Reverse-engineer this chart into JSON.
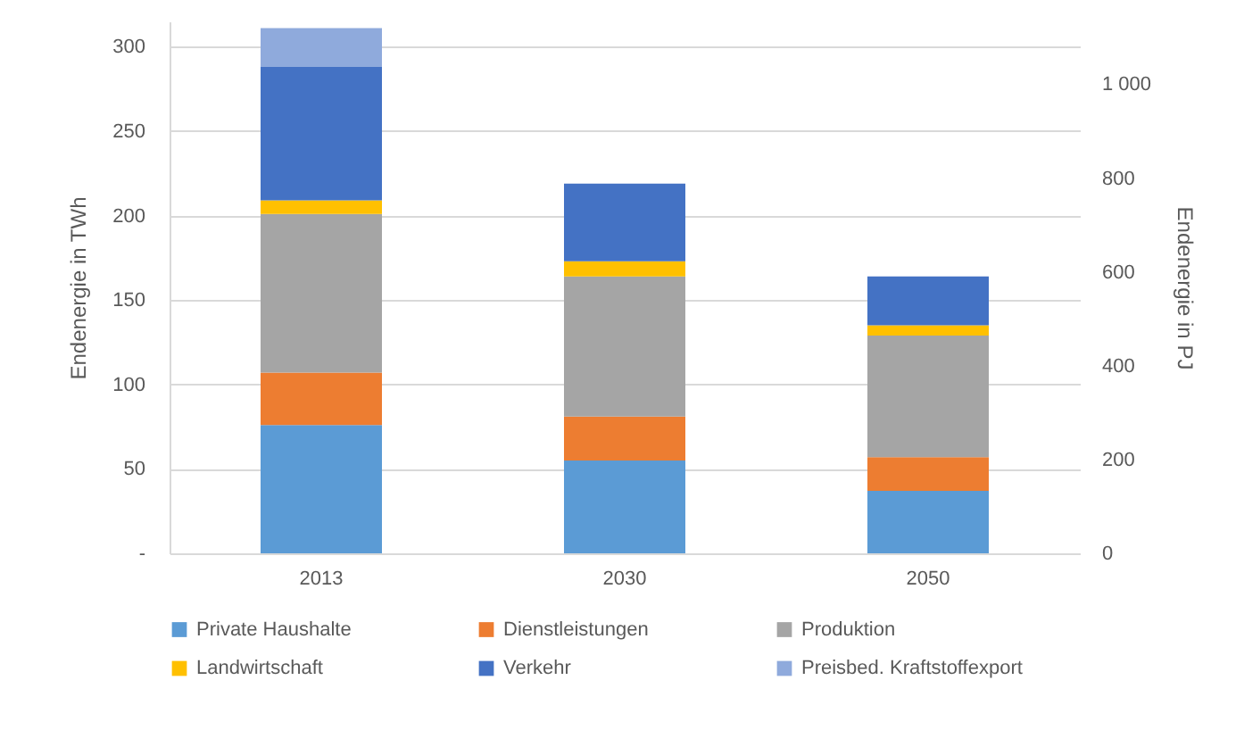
{
  "chart_data": {
    "type": "bar",
    "stacked": true,
    "ylabel": "Endenergie in TWh",
    "y2label": "Endenergie in PJ",
    "categories": [
      "2013",
      "2030",
      "2050"
    ],
    "series": [
      {
        "name": "Private Haushalte",
        "color": "#5b9bd5",
        "values": [
          76,
          55,
          37
        ]
      },
      {
        "name": "Dienstleistungen",
        "color": "#ed7d31",
        "values": [
          31,
          26,
          20
        ]
      },
      {
        "name": "Produktion",
        "color": "#a5a5a5",
        "values": [
          94,
          83,
          72
        ]
      },
      {
        "name": "Landwirtschaft",
        "color": "#ffc000",
        "values": [
          8,
          9,
          6
        ]
      },
      {
        "name": "Verkehr",
        "color": "#4472c4",
        "values": [
          79,
          46,
          29
        ]
      },
      {
        "name": "Preisbed. Kraftstoffexport",
        "color": "#8faadc",
        "values": [
          23,
          0,
          0
        ]
      }
    ],
    "ylim": [
      0,
      315
    ],
    "yticks": [
      {
        "value": 0,
        "label": "-"
      },
      50,
      100,
      150,
      200,
      250,
      300
    ],
    "y2lim": [
      0,
      1134
    ],
    "y2ticks": [
      0,
      200,
      400,
      600,
      800,
      {
        "value": 1000,
        "label": "1 000"
      }
    ],
    "grid": "y",
    "legend": "bottom"
  }
}
